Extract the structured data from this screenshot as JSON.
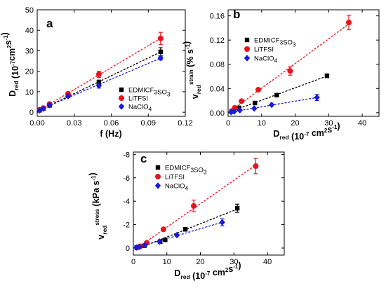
{
  "chart_data": [
    {
      "panel": "a",
      "type": "scatter",
      "xlabel": "f (Hz)",
      "ylabel": {
        "main": "D",
        "sub": "red",
        "unit_prefix": " (10",
        "unit_exp1": "-7",
        "unit_mid": "cm",
        "unit_exp2": "2",
        "unit_mid2": "s",
        "unit_exp3": "-1",
        "unit_end": ")"
      },
      "xlim": [
        0,
        0.12
      ],
      "ylim": [
        -2,
        50
      ],
      "xticks": [
        0.0,
        0.03,
        0.06,
        0.09,
        0.12
      ],
      "xtick_labels": [
        "0.00",
        "0.03",
        "0.06",
        "0.09",
        "0.12"
      ],
      "yticks": [
        0,
        10,
        20,
        30,
        40,
        50
      ],
      "ytick_labels": [
        "0",
        "10",
        "20",
        "30",
        "40",
        "50"
      ],
      "legend_position": "right",
      "series": [
        {
          "name": "EDMICF3SO3",
          "label": {
            "main": "EDMICF",
            "sub1": "3",
            "mid": "SO",
            "sub2": "3"
          },
          "color": "#000000",
          "marker": "square",
          "x": [
            0.002,
            0.005,
            0.01,
            0.025,
            0.05,
            0.1
          ],
          "y": [
            1.0,
            1.8,
            3.3,
            8.0,
            14.5,
            29.5
          ],
          "err": [
            0.3,
            0.3,
            0.5,
            0.6,
            1.2,
            2.0
          ]
        },
        {
          "name": "LiTFSI",
          "label": {
            "main": "LiTFSI"
          },
          "color": "#e8141b",
          "marker": "circle",
          "x": [
            0.002,
            0.005,
            0.01,
            0.025,
            0.05,
            0.1
          ],
          "y": [
            1.2,
            2.0,
            4.0,
            9.0,
            18.5,
            36.0
          ],
          "err": [
            0.3,
            0.3,
            0.5,
            0.6,
            1.5,
            3.0
          ]
        },
        {
          "name": "NaClO4",
          "label": {
            "main": "NaClO",
            "sub1": "4"
          },
          "color": "#1a1ad8",
          "marker": "diamond",
          "x": [
            0.002,
            0.005,
            0.01,
            0.025,
            0.05,
            0.1
          ],
          "y": [
            0.9,
            1.8,
            3.5,
            7.8,
            13.0,
            26.5
          ],
          "err": [
            0.3,
            0.3,
            0.4,
            0.6,
            1.2,
            1.0
          ]
        }
      ]
    },
    {
      "panel": "b",
      "type": "scatter",
      "xlabel": {
        "main": "D",
        "sub": "red",
        "unit_prefix": " (10",
        "unit_exp1": "-7",
        "unit_mid": " cm",
        "unit_exp2": "2",
        "unit_mid2": "s",
        "unit_exp3": "-1",
        "unit_end": ")"
      },
      "ylabel": {
        "main": "v",
        "sub": "red",
        "sup": "strain",
        "unit_prefix": " (% s",
        "unit_exp1": "-1",
        "unit_end": ")"
      },
      "xlim": [
        0,
        45
      ],
      "ylim": [
        -0.006,
        0.17
      ],
      "xticks": [
        0,
        10,
        20,
        30,
        40
      ],
      "xtick_labels": [
        "0",
        "10",
        "20",
        "30",
        "40"
      ],
      "yticks": [
        0,
        0.04,
        0.08,
        0.12,
        0.16
      ],
      "ytick_labels": [
        "0.00",
        "0.04",
        "0.08",
        "0.12",
        "0.16"
      ],
      "legend_position": "top-left",
      "series": [
        {
          "name": "EDMICF3SO3",
          "color": "#000000",
          "marker": "square",
          "x": [
            1.0,
            1.8,
            3.3,
            8.0,
            14.5,
            29.5
          ],
          "y": [
            0.002,
            0.004,
            0.008,
            0.016,
            0.029,
            0.061
          ],
          "err": [
            0.001,
            0.001,
            0.001,
            0.002,
            0.003,
            0.003
          ]
        },
        {
          "name": "LiTFSI",
          "color": "#e8141b",
          "marker": "circle",
          "x": [
            1.2,
            2.0,
            4.0,
            9.0,
            18.5,
            36.0
          ],
          "y": [
            0.003,
            0.008,
            0.019,
            0.038,
            0.069,
            0.149
          ],
          "err": [
            0.001,
            0.001,
            0.002,
            0.002,
            0.007,
            0.012
          ]
        },
        {
          "name": "NaClO4",
          "color": "#1a1ad8",
          "marker": "diamond",
          "x": [
            0.9,
            1.8,
            3.5,
            7.8,
            13.0,
            26.5
          ],
          "y": [
            0.001,
            0.002,
            0.004,
            0.007,
            0.013,
            0.025
          ],
          "err": [
            0.001,
            0.001,
            0.001,
            0.001,
            0.002,
            0.005
          ]
        }
      ]
    },
    {
      "panel": "c",
      "type": "scatter",
      "xlabel": {
        "main": "D",
        "sub": "red",
        "unit_prefix": " (10",
        "unit_exp1": "-7",
        "unit_mid": " cm",
        "unit_exp2": "2",
        "unit_mid2": "s",
        "unit_exp3": "-1",
        "unit_end": ")"
      },
      "ylabel": {
        "main": "v",
        "sub": "red",
        "sup": "stress",
        "unit_prefix": " (kPa s",
        "unit_exp1": "-1",
        "unit_end": ")"
      },
      "xlim": [
        0,
        45
      ],
      "ylim_inverted": true,
      "ylim": [
        0.6,
        -8.2
      ],
      "xticks": [
        0,
        10,
        20,
        30,
        40
      ],
      "xtick_labels": [
        "0",
        "10",
        "20",
        "30",
        "40"
      ],
      "yticks": [
        0,
        -2,
        -4,
        -6,
        -8
      ],
      "ytick_labels": [
        "0",
        "-2",
        "-4",
        "-6",
        "-8"
      ],
      "legend_position": "top-left",
      "series": [
        {
          "name": "EDMICF3SO3",
          "color": "#000000",
          "marker": "square",
          "x": [
            1.0,
            1.8,
            3.3,
            8.0,
            9.5,
            15.5,
            31.0
          ],
          "y": [
            -0.05,
            -0.1,
            -0.2,
            -0.55,
            -0.7,
            -1.6,
            -3.4
          ],
          "err": [
            0.05,
            0.05,
            0.05,
            0.1,
            0.1,
            0.15,
            0.35
          ]
        },
        {
          "name": "LiTFSI",
          "color": "#e8141b",
          "marker": "circle",
          "x": [
            1.2,
            2.0,
            4.0,
            9.0,
            18.0,
            36.5
          ],
          "y": [
            -0.05,
            -0.15,
            -0.45,
            -1.6,
            -3.6,
            -7.0
          ],
          "err": [
            0.05,
            0.05,
            0.1,
            0.1,
            0.5,
            0.65
          ]
        },
        {
          "name": "NaClO4",
          "color": "#1a1ad8",
          "marker": "diamond",
          "x": [
            0.9,
            1.8,
            3.5,
            7.8,
            13.0,
            26.5
          ],
          "y": [
            -0.05,
            -0.1,
            -0.25,
            -0.55,
            -1.1,
            -2.2
          ],
          "err": [
            0.05,
            0.05,
            0.05,
            0.1,
            0.1,
            0.3
          ]
        }
      ]
    }
  ]
}
